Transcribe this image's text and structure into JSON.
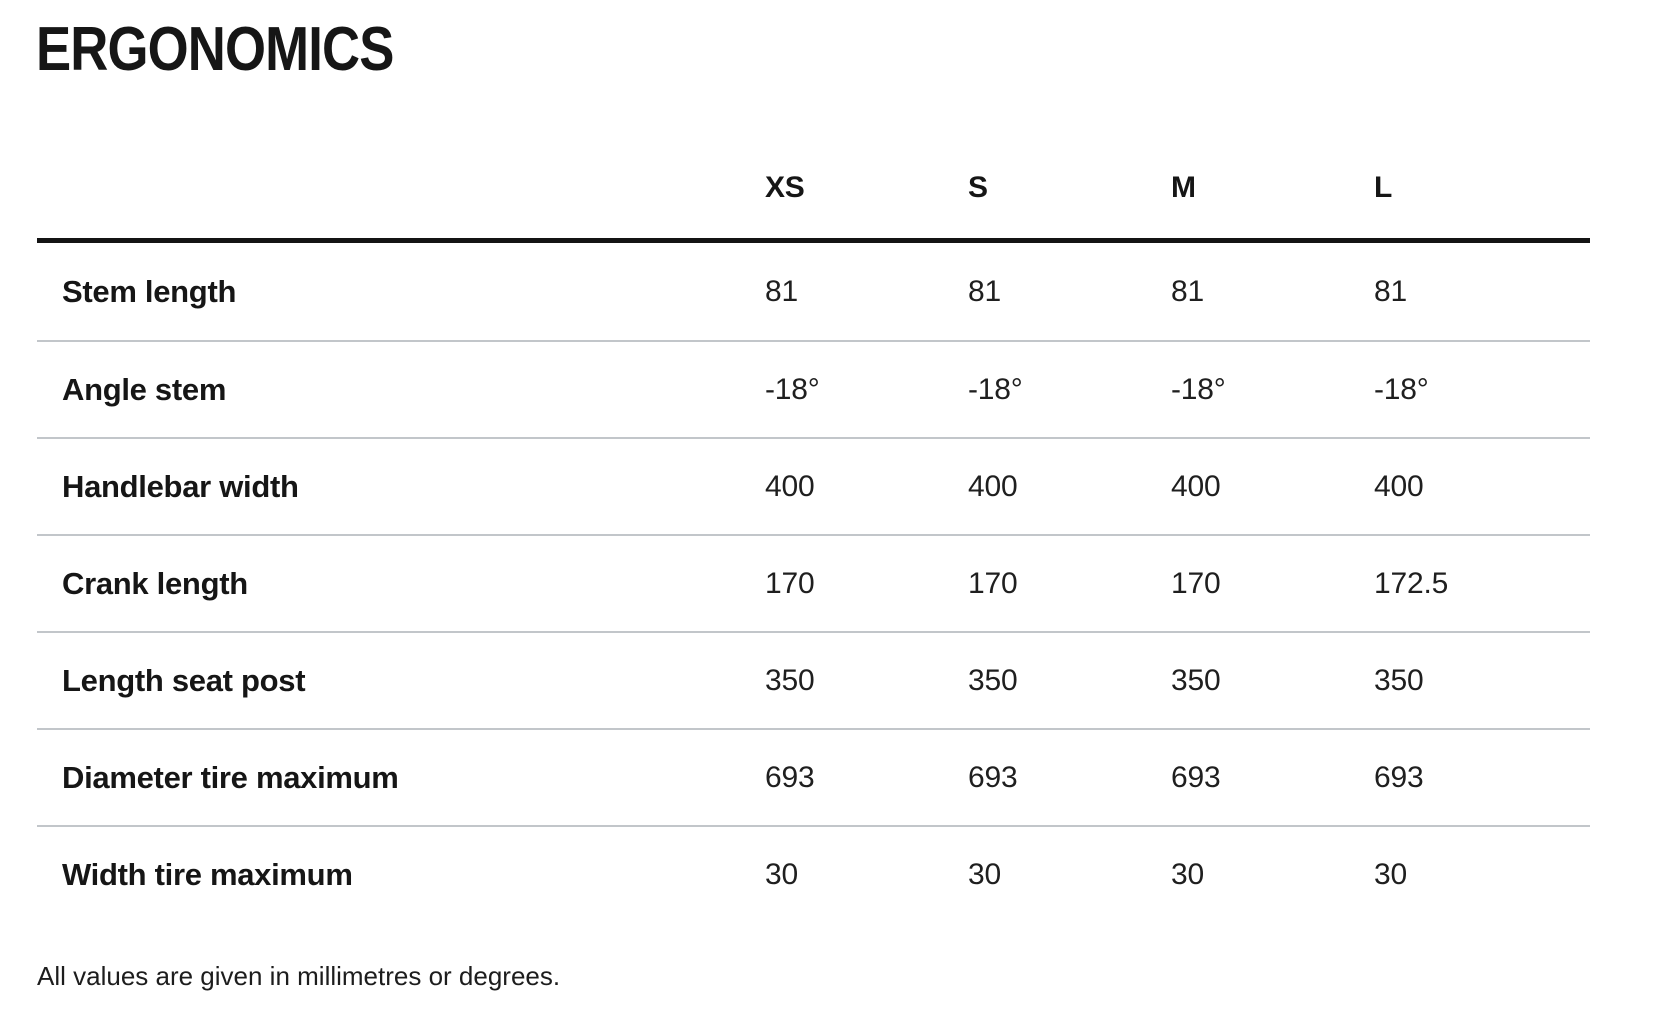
{
  "title": "ERGONOMICS",
  "table": {
    "columns": [
      "XS",
      "S",
      "M",
      "L"
    ],
    "rows": [
      {
        "label": "Stem length",
        "values": [
          "81",
          "81",
          "81",
          "81"
        ]
      },
      {
        "label": "Angle stem",
        "values": [
          "-18°",
          "-18°",
          "-18°",
          "-18°"
        ]
      },
      {
        "label": "Handlebar width",
        "values": [
          "400",
          "400",
          "400",
          "400"
        ]
      },
      {
        "label": "Crank length",
        "values": [
          "170",
          "170",
          "170",
          "172.5"
        ]
      },
      {
        "label": "Length seat post",
        "values": [
          "350",
          "350",
          "350",
          "350"
        ]
      },
      {
        "label": "Diameter tire maximum",
        "values": [
          "693",
          "693",
          "693",
          "693"
        ]
      },
      {
        "label": "Width tire maximum",
        "values": [
          "30",
          "30",
          "30",
          "30"
        ]
      }
    ]
  },
  "footer": {
    "note": "All values are given in millimetres or degrees."
  },
  "colors": {
    "bg": "#ffffff",
    "text": "#161616",
    "value-text": "#1f1f1f",
    "note-text": "#1d1d1d",
    "rule-heavy": "#141414",
    "rule-light": "#c2c6ca"
  }
}
